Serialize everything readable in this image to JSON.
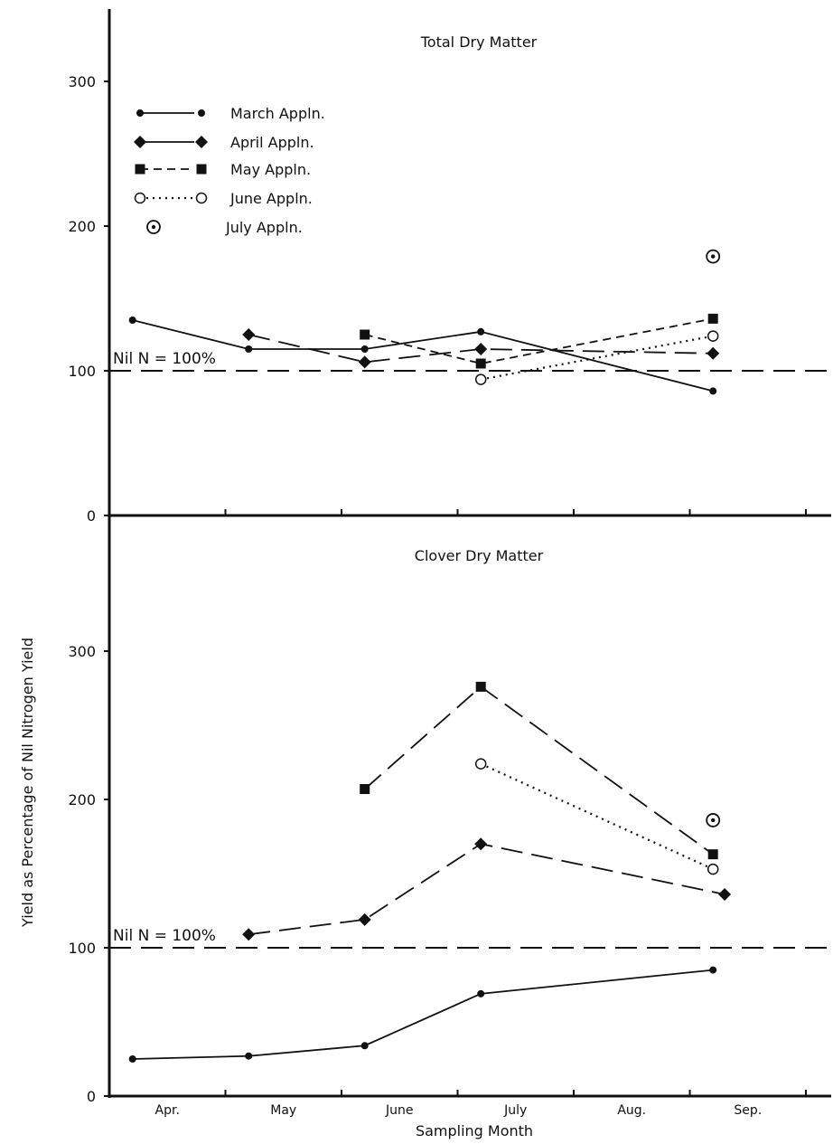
{
  "chart_data": [
    {
      "type": "line",
      "title": "Total Dry Matter",
      "ylabel": "Yield as Percentage of Nil Nitrogen Yield",
      "xlabel": "Sampling Month",
      "categories": [
        "Apr.",
        "May",
        "June",
        "July",
        "Aug.",
        "Sep."
      ],
      "ylim": [
        0,
        350
      ],
      "yticks": [
        "0",
        "100",
        "200",
        "300"
      ],
      "reference": {
        "label": "Nil N = 100%",
        "value": 100
      },
      "legend": {
        "placement": "top-left"
      },
      "series": [
        {
          "name": "March Appln.",
          "marker": "dot",
          "line": "solid",
          "points": [
            {
              "month": 4.2,
              "value": 135
            },
            {
              "month": 5.2,
              "value": 115
            },
            {
              "month": 6.2,
              "value": 115
            },
            {
              "month": 7.2,
              "value": 127
            },
            {
              "month": 9.2,
              "value": 86
            }
          ]
        },
        {
          "name": "April Appln.",
          "marker": "diamond",
          "line": "longdash",
          "points": [
            {
              "month": 5.2,
              "value": 125
            },
            {
              "month": 6.2,
              "value": 106
            },
            {
              "month": 7.2,
              "value": 115
            },
            {
              "month": 9.2,
              "value": 112
            }
          ]
        },
        {
          "name": "May Appln.",
          "marker": "square",
          "line": "dash",
          "points": [
            {
              "month": 6.2,
              "value": 125
            },
            {
              "month": 7.2,
              "value": 105
            },
            {
              "month": 9.2,
              "value": 136
            }
          ]
        },
        {
          "name": "June Appln.",
          "marker": "open-circle",
          "line": "dotted",
          "points": [
            {
              "month": 7.2,
              "value": 94
            },
            {
              "month": 9.2,
              "value": 124
            }
          ]
        },
        {
          "name": "July Appln.",
          "marker": "dotted-circle",
          "line": "none",
          "points": [
            {
              "month": 9.2,
              "value": 179
            }
          ]
        }
      ]
    },
    {
      "type": "line",
      "title": "Clover Dry Matter",
      "ylabel": "Yield as Percentage of Nil Nitrogen Yield",
      "xlabel": "Sampling Month",
      "categories": [
        "Apr.",
        "May",
        "June",
        "July",
        "Aug.",
        "Sep."
      ],
      "ylim": [
        0,
        350
      ],
      "yticks": [
        "0",
        "100",
        "200",
        "300"
      ],
      "reference": {
        "label": "Nil N = 100%",
        "value": 100
      },
      "series": [
        {
          "name": "March Appln.",
          "marker": "dot",
          "line": "solid",
          "points": [
            {
              "month": 4.2,
              "value": 25
            },
            {
              "month": 5.2,
              "value": 27
            },
            {
              "month": 6.2,
              "value": 34
            },
            {
              "month": 7.2,
              "value": 69
            },
            {
              "month": 9.2,
              "value": 85
            }
          ]
        },
        {
          "name": "April Appln.",
          "marker": "diamond",
          "line": "longdash",
          "points": [
            {
              "month": 5.2,
              "value": 109
            },
            {
              "month": 6.2,
              "value": 119
            },
            {
              "month": 7.2,
              "value": 170
            },
            {
              "month": 9.3,
              "value": 136
            }
          ]
        },
        {
          "name": "May Appln.",
          "marker": "square",
          "line": "longdash",
          "points": [
            {
              "month": 6.2,
              "value": 207
            },
            {
              "month": 7.2,
              "value": 276
            },
            {
              "month": 9.2,
              "value": 163
            }
          ]
        },
        {
          "name": "June Appln.",
          "marker": "open-circle",
          "line": "dotted",
          "points": [
            {
              "month": 7.2,
              "value": 224
            },
            {
              "month": 9.2,
              "value": 153
            }
          ]
        },
        {
          "name": "July Appln.",
          "marker": "dotted-circle",
          "line": "none",
          "points": [
            {
              "month": 9.2,
              "value": 186
            }
          ]
        }
      ]
    }
  ]
}
